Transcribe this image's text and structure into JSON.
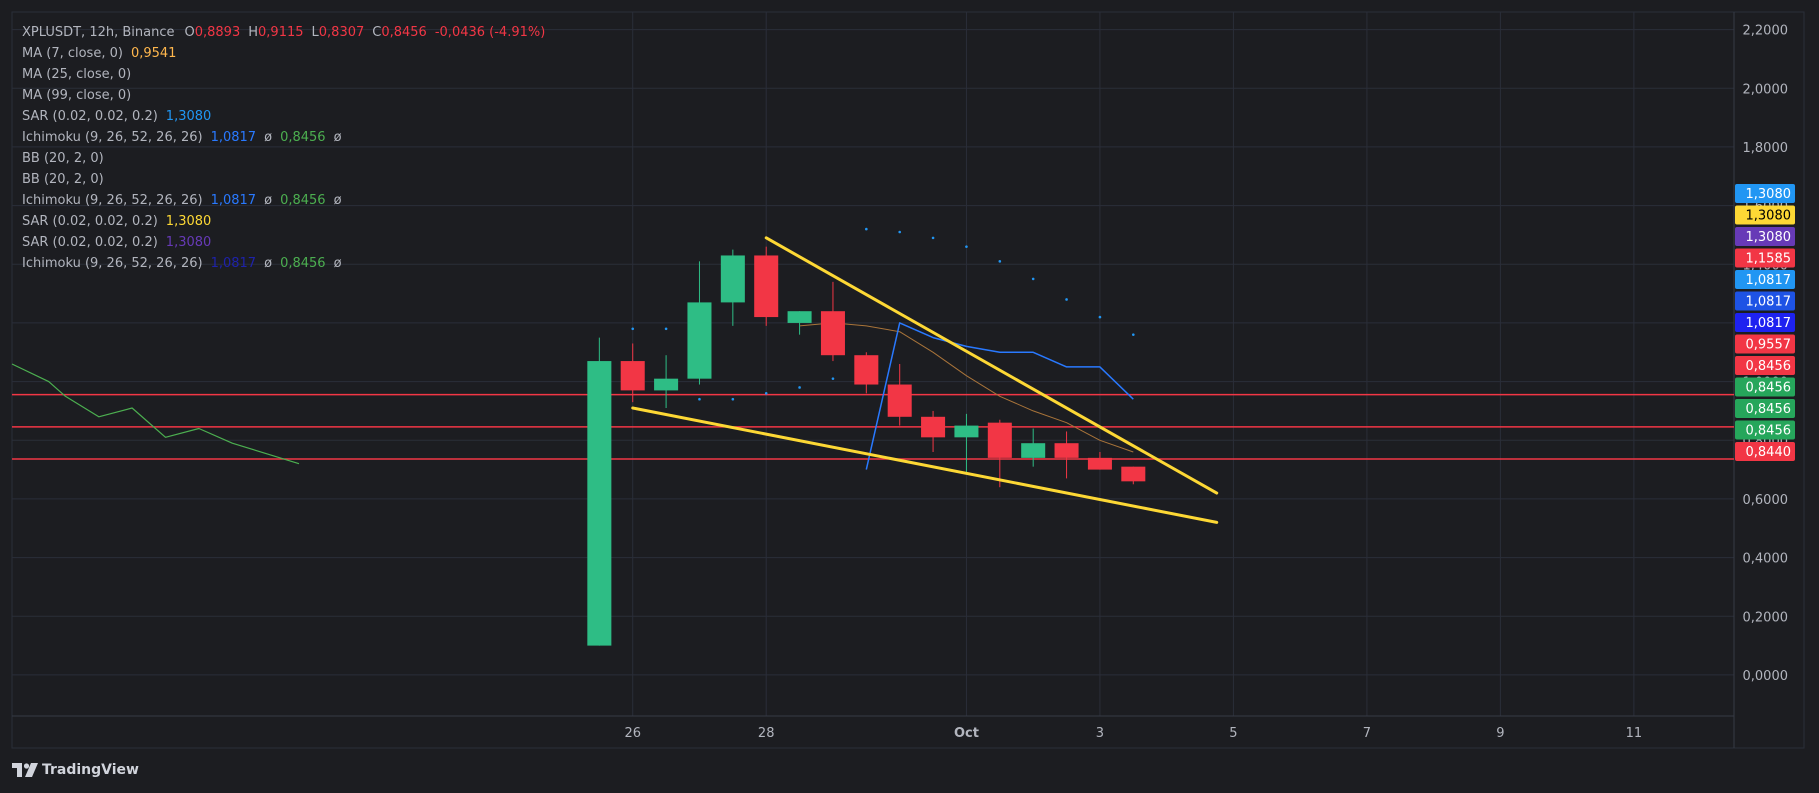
{
  "header": {
    "symbol": "XPLUSDT, 12h, Binance",
    "ohlc": [
      {
        "key": "O",
        "value": "0,8893"
      },
      {
        "key": "H",
        "value": "0,9115"
      },
      {
        "key": "L",
        "value": "0,8307"
      },
      {
        "key": "C",
        "value": "0,8456"
      }
    ],
    "change": "-0,0436 (-4.91%)"
  },
  "indicators": [
    {
      "label": "MA (7, close, 0)",
      "values": [
        "0,9541"
      ],
      "colors": [
        "#ffb74d"
      ]
    },
    {
      "label": "MA (25, close, 0)",
      "values": [],
      "colors": []
    },
    {
      "label": "MA (99, close, 0)",
      "values": [],
      "colors": []
    },
    {
      "label": "SAR (0.02, 0.02, 0.2)",
      "values": [
        "1,3080"
      ],
      "colors": [
        "#2196f3"
      ]
    },
    {
      "label": "Ichimoku (9, 26, 52, 26, 26)",
      "values": [
        "1,0817",
        "ø",
        "0,8456",
        "ø"
      ],
      "colors": [
        "#2979ff",
        "#b2b5be",
        "#4caf50",
        "#b2b5be"
      ]
    },
    {
      "label": "BB (20, 2, 0)",
      "values": [],
      "colors": []
    },
    {
      "label": "BB (20, 2, 0)",
      "values": [],
      "colors": []
    },
    {
      "label": "Ichimoku (9, 26, 52, 26, 26)",
      "values": [
        "1,0817",
        "ø",
        "0,8456",
        "ø"
      ],
      "colors": [
        "#2979ff",
        "#b2b5be",
        "#4caf50",
        "#b2b5be"
      ]
    },
    {
      "label": "SAR (0.02, 0.02, 0.2)",
      "values": [
        "1,3080"
      ],
      "colors": [
        "#fdd835"
      ]
    },
    {
      "label": "SAR (0.02, 0.02, 0.2)",
      "values": [
        "1,3080"
      ],
      "colors": [
        "#673ab7"
      ]
    },
    {
      "label": "Ichimoku (9, 26, 52, 26, 26)",
      "values": [
        "1,0817",
        "ø",
        "0,8456",
        "ø"
      ],
      "colors": [
        "#1e22aa",
        "#b2b5be",
        "#4caf50",
        "#b2b5be"
      ]
    }
  ],
  "brand": "TradingView",
  "colors": {
    "background": "#1c1d21",
    "grid": "#2a2e39",
    "up": "#26a69a",
    "up_candle": "#2ebd85",
    "down": "#f23645",
    "wedge": "#fdd835",
    "sar": "#2196f3",
    "tenkan": "#2979ff",
    "chikou": "#4caf50",
    "ma": "#a9743a",
    "hline": "#f23645"
  },
  "chart_data": {
    "type": "candlestick",
    "y_ticks": [
      "2,2000",
      "2,0000",
      "1,8000",
      "1,6000",
      "1,4000",
      "1,2000",
      "1,0000",
      "0,8000",
      "0,6000",
      "0,4000",
      "0,2000",
      "0,0000"
    ],
    "ylim": [
      -0.14,
      2.26
    ],
    "x_ticks": [
      {
        "label": "26",
        "t": 0
      },
      {
        "label": "28",
        "t": 4
      },
      {
        "label": "Oct",
        "t": 10
      },
      {
        "label": "3",
        "t": 14
      },
      {
        "label": "5",
        "t": 18
      },
      {
        "label": "7",
        "t": 22
      },
      {
        "label": "9",
        "t": 26
      },
      {
        "label": "11",
        "t": 30
      }
    ],
    "xlim": [
      -18.6,
      33.0
    ],
    "candles": [
      {
        "t": -1,
        "o": 0.1,
        "h": 1.15,
        "l": 0.1,
        "c": 1.07
      },
      {
        "t": 0,
        "o": 1.07,
        "h": 1.13,
        "l": 0.93,
        "c": 0.97
      },
      {
        "t": 1,
        "o": 0.97,
        "h": 1.09,
        "l": 0.91,
        "c": 1.01
      },
      {
        "t": 2,
        "o": 1.01,
        "h": 1.41,
        "l": 0.99,
        "c": 1.27
      },
      {
        "t": 3,
        "o": 1.27,
        "h": 1.45,
        "l": 1.19,
        "c": 1.43
      },
      {
        "t": 4,
        "o": 1.43,
        "h": 1.46,
        "l": 1.19,
        "c": 1.22
      },
      {
        "t": 5,
        "o": 1.2,
        "h": 1.24,
        "l": 1.16,
        "c": 1.24
      },
      {
        "t": 6,
        "o": 1.24,
        "h": 1.34,
        "l": 1.07,
        "c": 1.09
      },
      {
        "t": 7,
        "o": 1.09,
        "h": 1.1,
        "l": 0.96,
        "c": 0.99
      },
      {
        "t": 8,
        "o": 0.99,
        "h": 1.06,
        "l": 0.85,
        "c": 0.88
      },
      {
        "t": 9,
        "o": 0.88,
        "h": 0.9,
        "l": 0.76,
        "c": 0.81
      },
      {
        "t": 10,
        "o": 0.81,
        "h": 0.89,
        "l": 0.69,
        "c": 0.85
      },
      {
        "t": 11,
        "o": 0.86,
        "h": 0.87,
        "l": 0.64,
        "c": 0.74
      },
      {
        "t": 12,
        "o": 0.74,
        "h": 0.84,
        "l": 0.71,
        "c": 0.79
      },
      {
        "t": 13,
        "o": 0.79,
        "h": 0.83,
        "l": 0.67,
        "c": 0.74
      },
      {
        "t": 14,
        "o": 0.74,
        "h": 0.76,
        "l": 0.7,
        "c": 0.7
      },
      {
        "t": 15,
        "o": 0.71,
        "h": 0.71,
        "l": 0.65,
        "c": 0.66
      }
    ],
    "sar_dots": [
      {
        "t": 0,
        "v": 1.18
      },
      {
        "t": 1,
        "v": 1.18
      },
      {
        "t": 2,
        "v": 0.94
      },
      {
        "t": 3,
        "v": 0.94
      },
      {
        "t": 4,
        "v": 0.96
      },
      {
        "t": 5,
        "v": 0.98
      },
      {
        "t": 6,
        "v": 1.01
      },
      {
        "t": 7,
        "v": 1.52
      },
      {
        "t": 8,
        "v": 1.51
      },
      {
        "t": 9,
        "v": 1.49
      },
      {
        "t": 10,
        "v": 1.46
      },
      {
        "t": 11,
        "v": 1.41
      },
      {
        "t": 12,
        "v": 1.35
      },
      {
        "t": 13,
        "v": 1.28
      },
      {
        "t": 14,
        "v": 1.22
      },
      {
        "t": 15,
        "v": 1.16
      }
    ],
    "tenkan_line": [
      {
        "t": 7,
        "v": 0.7
      },
      {
        "t": 8,
        "v": 1.2
      },
      {
        "t": 9,
        "v": 1.15
      },
      {
        "t": 10,
        "v": 1.12
      },
      {
        "t": 11,
        "v": 1.1
      },
      {
        "t": 12,
        "v": 1.1
      },
      {
        "t": 13,
        "v": 1.05
      },
      {
        "t": 14,
        "v": 1.05
      },
      {
        "t": 15,
        "v": 0.94
      }
    ],
    "ma_line": [
      {
        "t": 5,
        "v": 1.19
      },
      {
        "t": 6,
        "v": 1.2
      },
      {
        "t": 7,
        "v": 1.19
      },
      {
        "t": 8,
        "v": 1.17
      },
      {
        "t": 9,
        "v": 1.1
      },
      {
        "t": 10,
        "v": 1.02
      },
      {
        "t": 11,
        "v": 0.95
      },
      {
        "t": 12,
        "v": 0.9
      },
      {
        "t": 13,
        "v": 0.86
      },
      {
        "t": 14,
        "v": 0.8
      },
      {
        "t": 15,
        "v": 0.76
      }
    ],
    "chikou_line": [
      {
        "t": -18.6,
        "v": 1.06
      },
      {
        "t": -17.5,
        "v": 1.0
      },
      {
        "t": -17.0,
        "v": 0.95
      },
      {
        "t": -16.0,
        "v": 0.88
      },
      {
        "t": -15.0,
        "v": 0.91
      },
      {
        "t": -14.0,
        "v": 0.81
      },
      {
        "t": -13.0,
        "v": 0.84
      },
      {
        "t": -12.0,
        "v": 0.79
      },
      {
        "t": -10.0,
        "v": 0.72
      }
    ],
    "wedge_upper": [
      {
        "t": 4,
        "v": 1.49
      },
      {
        "t": 17.5,
        "v": 0.62
      }
    ],
    "wedge_lower": [
      {
        "t": 0,
        "v": 0.91
      },
      {
        "t": 17.5,
        "v": 0.52
      }
    ],
    "hlines": [
      0.9557,
      0.8456,
      0.736
    ],
    "price_labels": [
      {
        "text": "1,3080",
        "bg": "#2196f3",
        "fg": "#ffffff"
      },
      {
        "text": "1,3080",
        "bg": "#fdd835",
        "fg": "#000000"
      },
      {
        "text": "1,3080",
        "bg": "#673ab7",
        "fg": "#ffffff"
      },
      {
        "text": "1,1585",
        "bg": "#f23645",
        "fg": "#ffffff"
      },
      {
        "text": "1,0817",
        "bg": "#2196f3",
        "fg": "#ffffff"
      },
      {
        "text": "1,0817",
        "bg": "#1e53e5",
        "fg": "#ffffff"
      },
      {
        "text": "1,0817",
        "bg": "#1e22f0",
        "fg": "#ffffff"
      },
      {
        "text": "0,9557",
        "bg": "#f23645",
        "fg": "#ffffff"
      },
      {
        "text": "0,8456",
        "bg": "#f23645",
        "fg": "#ffffff"
      },
      {
        "text": "0,8456",
        "bg": "#26a65b",
        "fg": "#ffffff"
      },
      {
        "text": "0,8456",
        "bg": "#26a65b",
        "fg": "#ffffff"
      },
      {
        "text": "0,8456",
        "bg": "#26a65b",
        "fg": "#ffffff"
      },
      {
        "text": "0,8440",
        "bg": "#f23645",
        "fg": "#ffffff"
      }
    ]
  }
}
